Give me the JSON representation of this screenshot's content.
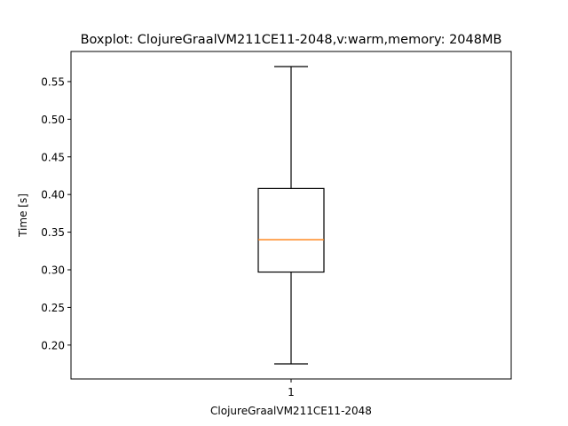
{
  "chart_data": {
    "type": "boxplot",
    "title": "Boxplot: ClojureGraalVM211CE11-2048,v:warm,memory: 2048MB",
    "xlabel": "ClojureGraalVM211CE11-2048",
    "ylabel": "Time [s]",
    "categories": [
      "1"
    ],
    "ylim": [
      0.155,
      0.59
    ],
    "y_ticks": [
      0.2,
      0.25,
      0.3,
      0.35,
      0.4,
      0.45,
      0.5,
      0.55
    ],
    "y_tick_labels": [
      "0.20",
      "0.25",
      "0.30",
      "0.35",
      "0.40",
      "0.45",
      "0.50",
      "0.55"
    ],
    "grid": false,
    "boxes": [
      {
        "category": "1",
        "whisker_low": 0.175,
        "q1": 0.297,
        "median": 0.34,
        "q3": 0.408,
        "whisker_high": 0.57
      }
    ],
    "colors": {
      "box": "#000000",
      "median": "#ff7f0e",
      "whisker": "#000000",
      "axes": "#000000"
    }
  }
}
